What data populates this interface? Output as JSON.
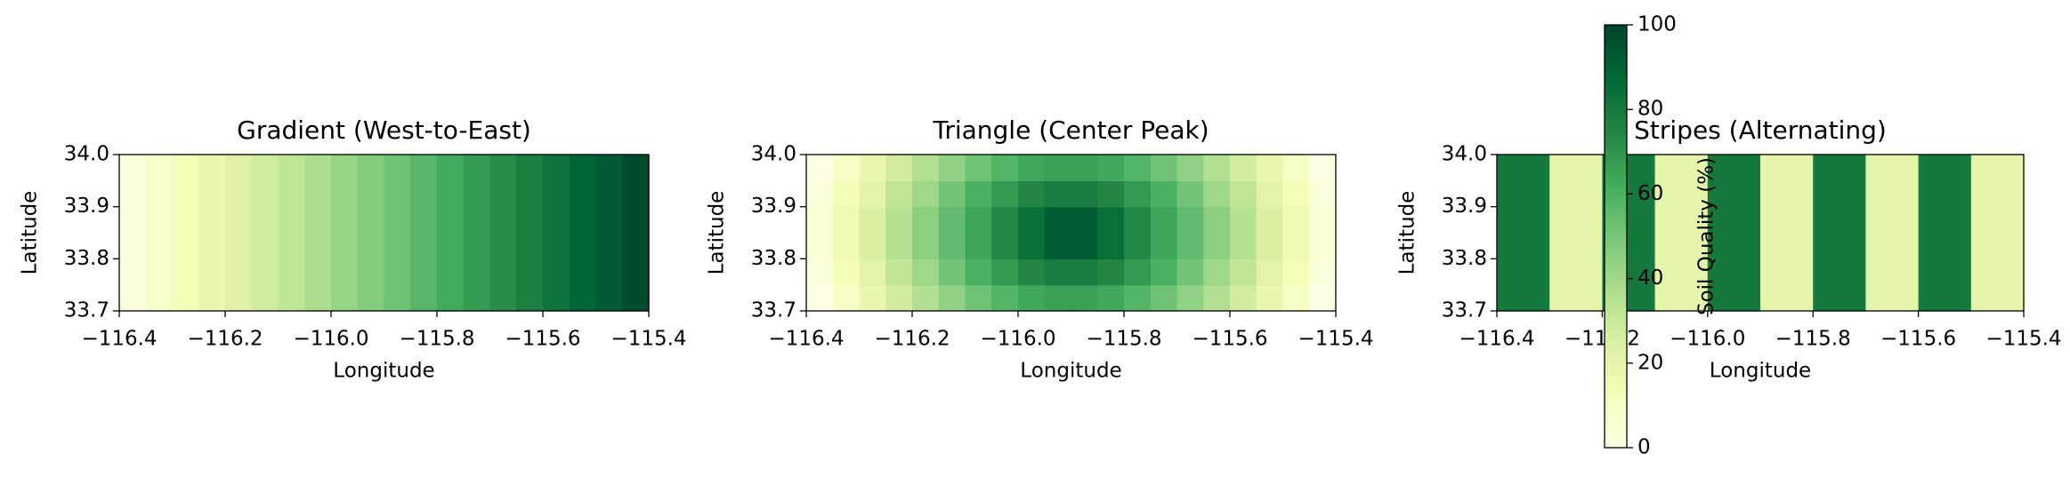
{
  "chart_data": [
    {
      "type": "heatmap",
      "title": "Gradient (West-to-East)",
      "xlabel": "Longitude",
      "ylabel": "Latitude",
      "xlim": [
        -116.4,
        -115.4
      ],
      "ylim": [
        33.7,
        34.0
      ],
      "xticks": [
        {
          "value": -116.4,
          "label": "−116.4"
        },
        {
          "value": -116.2,
          "label": "−116.2"
        },
        {
          "value": -116.0,
          "label": "−116.0"
        },
        {
          "value": -115.8,
          "label": "−115.8"
        },
        {
          "value": -115.6,
          "label": "−115.6"
        },
        {
          "value": -115.4,
          "label": "−115.4"
        }
      ],
      "yticks": [
        {
          "value": 33.7,
          "label": "33.7"
        },
        {
          "value": 33.8,
          "label": "33.8"
        },
        {
          "value": 33.9,
          "label": "33.9"
        },
        {
          "value": 34.0,
          "label": "34.0"
        }
      ],
      "z": [
        [
          2.5,
          7.5,
          12.5,
          17.5,
          22.5,
          27.5,
          32.5,
          37.5,
          42.5,
          47.5,
          52.5,
          57.5,
          62.5,
          67.5,
          72.5,
          77.5,
          82.5,
          87.5,
          92.5,
          97.5
        ]
      ]
    },
    {
      "type": "heatmap",
      "title": "Triangle (Center Peak)",
      "xlabel": "Longitude",
      "ylabel": "Latitude",
      "xlim": [
        -116.4,
        -115.4
      ],
      "ylim": [
        33.7,
        34.0
      ],
      "xticks": [
        {
          "value": -116.4,
          "label": "−116.4"
        },
        {
          "value": -116.2,
          "label": "−116.2"
        },
        {
          "value": -116.0,
          "label": "−116.0"
        },
        {
          "value": -115.8,
          "label": "−115.8"
        },
        {
          "value": -115.6,
          "label": "−115.6"
        },
        {
          "value": -115.4,
          "label": "−115.4"
        }
      ],
      "yticks": [
        {
          "value": 33.7,
          "label": "33.7"
        },
        {
          "value": 33.8,
          "label": "33.8"
        },
        {
          "value": 33.9,
          "label": "33.9"
        },
        {
          "value": 34.0,
          "label": "34.0"
        }
      ],
      "z": [
        [
          0,
          9,
          18,
          27,
          36,
          44,
          52,
          58,
          63,
          66,
          66,
          63,
          58,
          52,
          44,
          36,
          27,
          18,
          9,
          0
        ],
        [
          3,
          13,
          22,
          32,
          41,
          51,
          60,
          68,
          75,
          79,
          79,
          75,
          68,
          60,
          51,
          41,
          32,
          22,
          13,
          3
        ],
        [
          5,
          15,
          25,
          35,
          45,
          55,
          64,
          74,
          84,
          92,
          92,
          84,
          74,
          64,
          55,
          45,
          35,
          25,
          15,
          5
        ],
        [
          5,
          15,
          25,
          35,
          45,
          55,
          64,
          74,
          84,
          92,
          92,
          84,
          74,
          64,
          55,
          45,
          35,
          25,
          15,
          5
        ],
        [
          3,
          13,
          22,
          32,
          41,
          51,
          60,
          68,
          75,
          79,
          79,
          75,
          68,
          60,
          51,
          41,
          32,
          22,
          13,
          3
        ],
        [
          0,
          9,
          18,
          27,
          36,
          44,
          52,
          58,
          63,
          66,
          66,
          63,
          58,
          52,
          44,
          36,
          27,
          18,
          9,
          0
        ]
      ]
    },
    {
      "type": "heatmap",
      "title": "Stripes (Alternating)",
      "xlabel": "Longitude",
      "ylabel": "Latitude",
      "xlim": [
        -116.4,
        -115.4
      ],
      "ylim": [
        33.7,
        34.0
      ],
      "xticks": [
        {
          "value": -116.4,
          "label": "−116.4"
        },
        {
          "value": -116.2,
          "label": "−116.2"
        },
        {
          "value": -116.0,
          "label": "−116.0"
        },
        {
          "value": -115.8,
          "label": "−115.8"
        },
        {
          "value": -115.6,
          "label": "−115.6"
        },
        {
          "value": -115.4,
          "label": "−115.4"
        }
      ],
      "yticks": [
        {
          "value": 33.7,
          "label": "33.7"
        },
        {
          "value": 33.8,
          "label": "33.8"
        },
        {
          "value": 33.9,
          "label": "33.9"
        },
        {
          "value": 34.0,
          "label": "34.0"
        }
      ],
      "z": [
        [
          80,
          20,
          80,
          20,
          80,
          20,
          80,
          20,
          80,
          20
        ]
      ]
    }
  ],
  "colorbar": {
    "label": "Soil Quality (%)",
    "cmap": "YlGn",
    "lim": [
      0,
      100
    ],
    "ticks": [
      0,
      20,
      40,
      60,
      80,
      100
    ]
  }
}
